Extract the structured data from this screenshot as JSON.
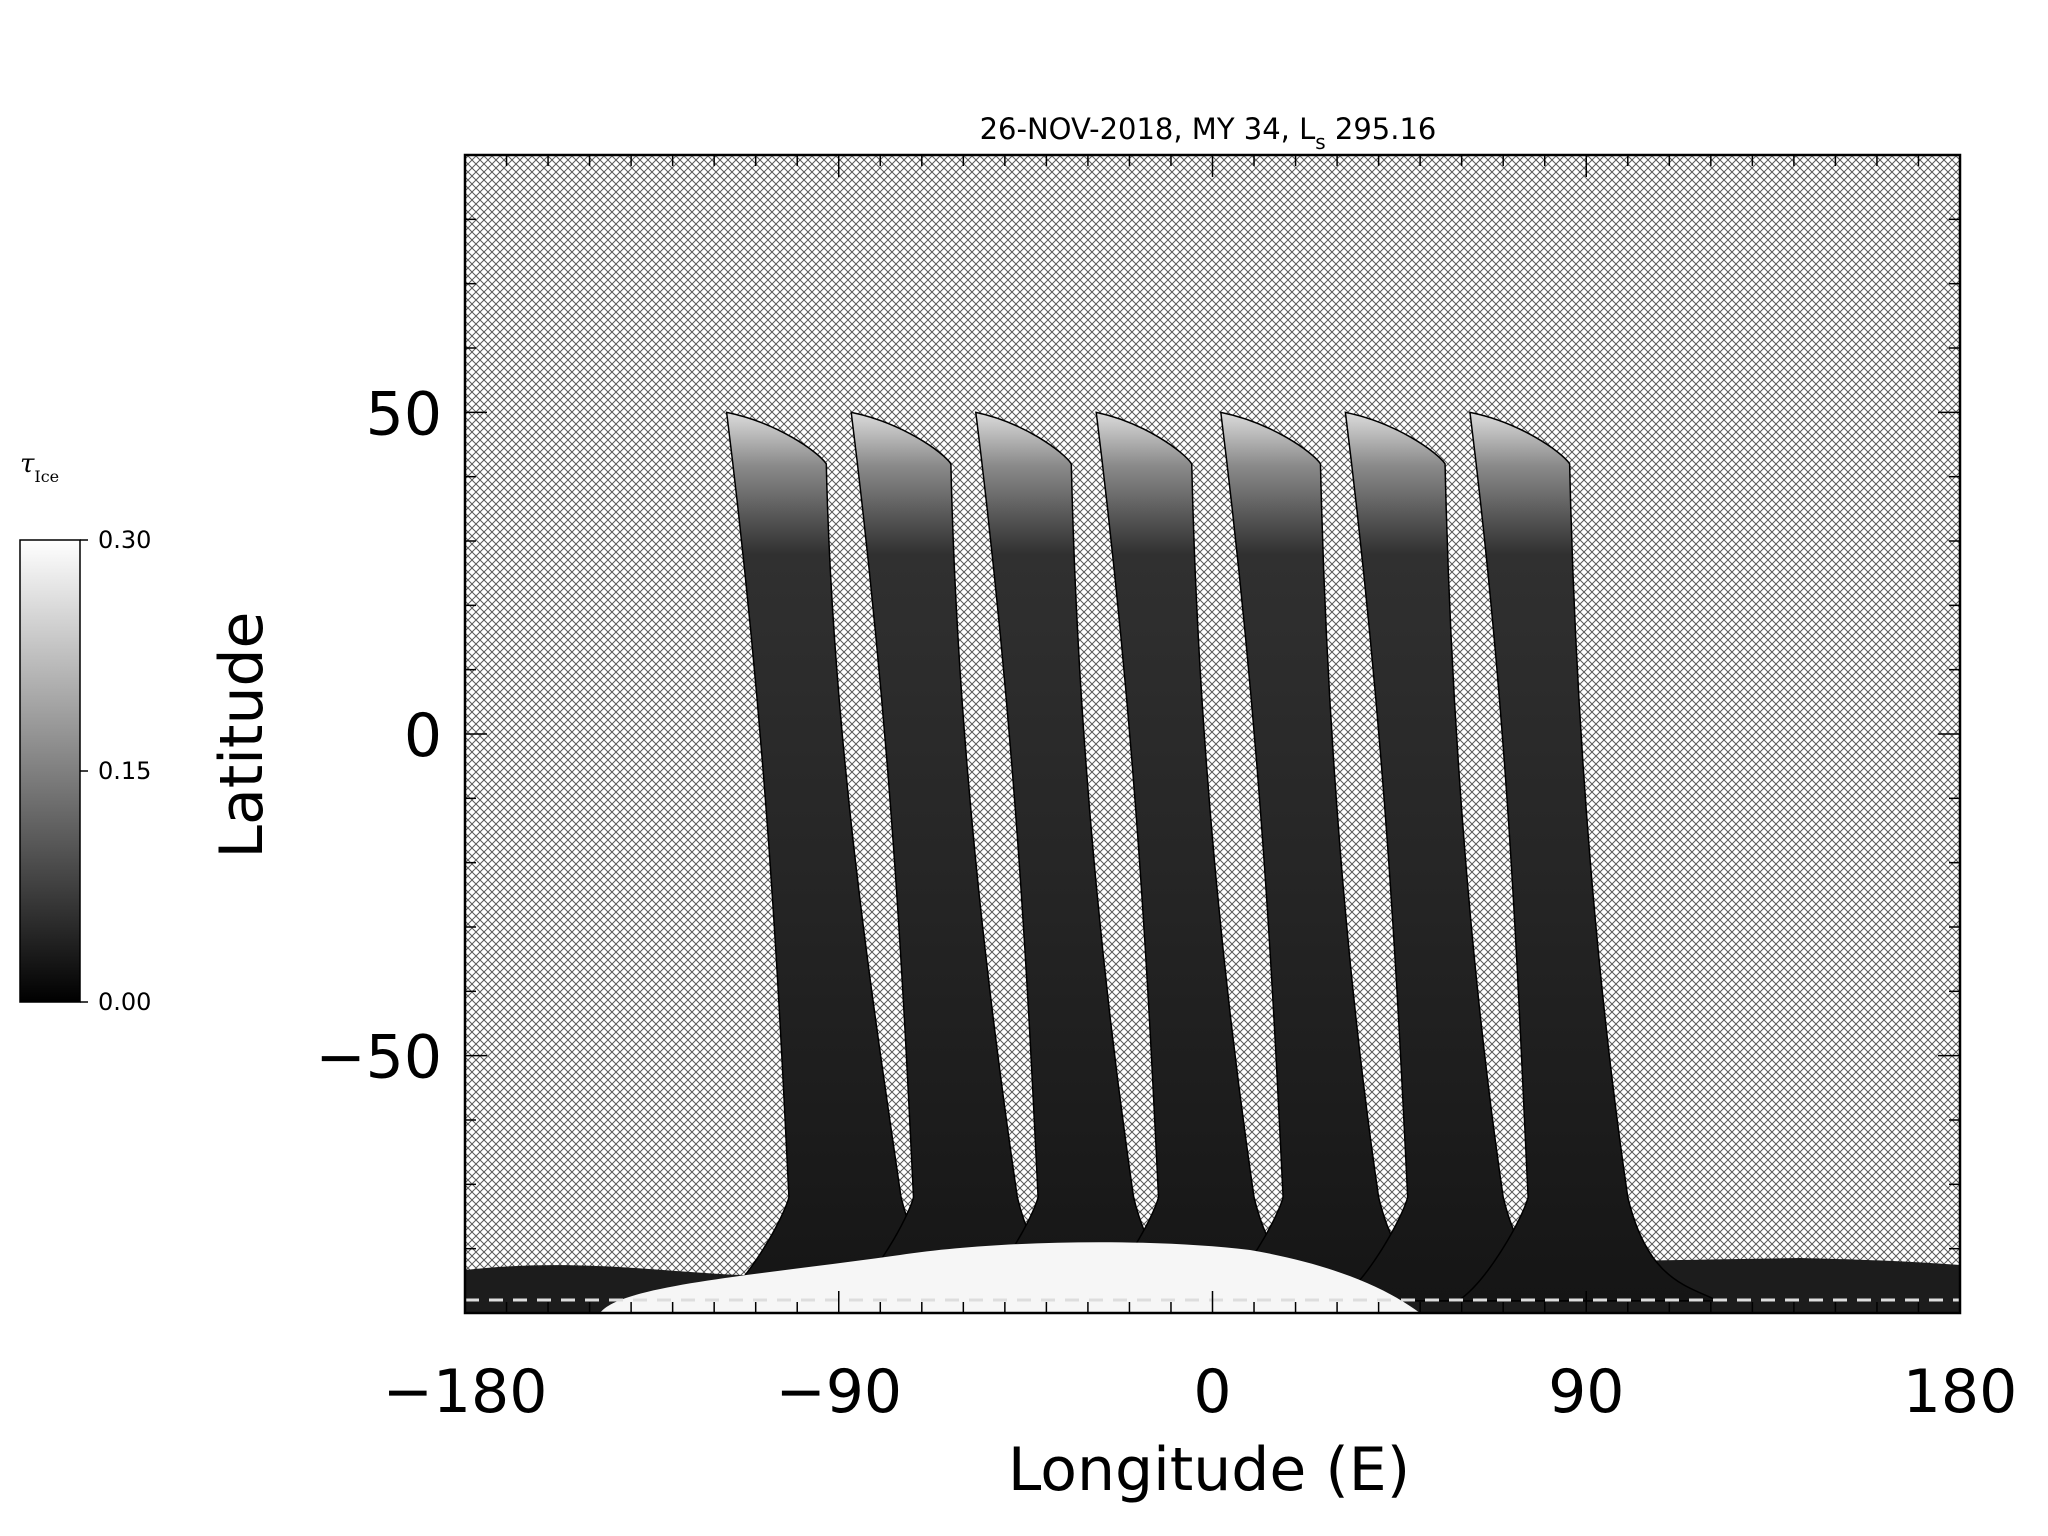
{
  "chart_data": {
    "type": "heatmap",
    "title_main": "26-NOV-2018, MY 34,  L",
    "title_sub": "s",
    "title_value": " 295.16",
    "xlabel": "Longitude (E)",
    "ylabel": "Latitude",
    "xlim": [
      -180,
      180
    ],
    "ylim": [
      -90,
      90
    ],
    "x_ticks": [
      -180,
      -90,
      0,
      90,
      180
    ],
    "x_tick_labels": [
      "−180",
      "−90",
      "0",
      "90",
      "180"
    ],
    "y_ticks": [
      -50,
      0,
      50
    ],
    "y_tick_labels": [
      "−50",
      "0",
      "50"
    ],
    "x_minor_step": 10,
    "y_minor_step": 10,
    "colorbar": {
      "title_main": "τ",
      "title_sub": "Ice",
      "min": 0.0,
      "max": 0.3,
      "ticks": [
        0.0,
        0.15,
        0.3
      ],
      "tick_labels": [
        "0.00",
        "0.15",
        "0.30"
      ],
      "colormap": "grayscale"
    },
    "missing_data_pattern": "crosshatch",
    "swaths": [
      {
        "lon_top_left": -117,
        "lon_top_right": -93,
        "lon_bottom_left": -102,
        "lon_bottom_right": -75,
        "lat_top_left": 50,
        "lat_top_right": 42
      },
      {
        "lon_top_left": -87,
        "lon_top_right": -63,
        "lon_bottom_left": -72,
        "lon_bottom_right": -47,
        "lat_top_left": 50,
        "lat_top_right": 42
      },
      {
        "lon_top_left": -57,
        "lon_top_right": -34,
        "lon_bottom_left": -42,
        "lon_bottom_right": -19,
        "lat_top_left": 50,
        "lat_top_right": 42
      },
      {
        "lon_top_left": -28,
        "lon_top_right": -5,
        "lon_bottom_left": -13,
        "lon_bottom_right": 10,
        "lat_top_left": 50,
        "lat_top_right": 42
      },
      {
        "lon_top_left": 2,
        "lon_top_right": 26,
        "lon_bottom_left": 17,
        "lon_bottom_right": 40,
        "lat_top_left": 50,
        "lat_top_right": 42
      },
      {
        "lon_top_left": 32,
        "lon_top_right": 56,
        "lon_bottom_left": 47,
        "lon_bottom_right": 70,
        "lat_top_left": 50,
        "lat_top_right": 42
      },
      {
        "lon_top_left": 62,
        "lon_top_right": 86,
        "lon_bottom_left": 76,
        "lon_bottom_right": 100,
        "lat_top_left": 50,
        "lat_top_right": 42
      }
    ],
    "colors": {
      "swath_dark": "#181818",
      "swath_mid": "#2a2a2a",
      "swath_bright": "#e8e8e8",
      "hatch": "#555555",
      "axis": "#000000"
    }
  }
}
